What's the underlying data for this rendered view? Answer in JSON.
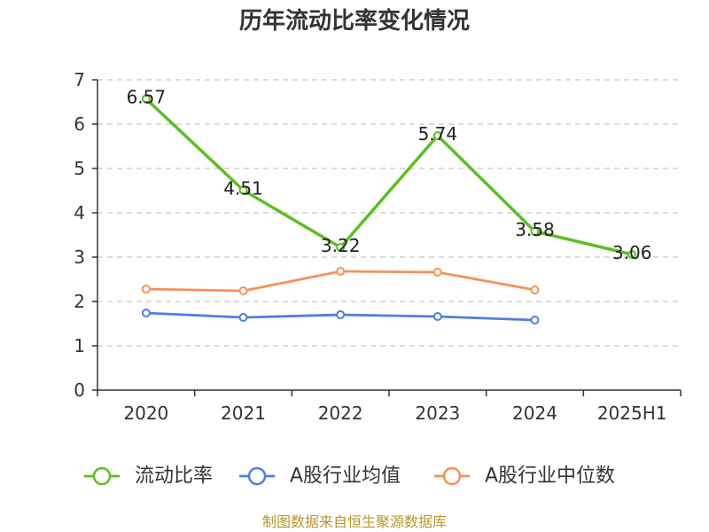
{
  "footer": "制图数据来自恒生聚源数据库",
  "colors": {
    "axis": "#333333",
    "grid": "#c8c8c8",
    "footer": "#b8962e",
    "point_fill": "#ffffff"
  },
  "chart_data": {
    "type": "line",
    "title": "历年流动比率变化情况",
    "xlabel": "",
    "ylabel": "",
    "categories": [
      "2020",
      "2021",
      "2022",
      "2023",
      "2024",
      "2025H1"
    ],
    "ylim": [
      0,
      7
    ],
    "yticks": [
      "0",
      "1",
      "2",
      "3",
      "4",
      "5",
      "6",
      "7"
    ],
    "grid": true,
    "legend": "bottom",
    "series": [
      {
        "name": "流动比率",
        "color": "#5bbf24",
        "show_labels": true,
        "values": [
          6.57,
          4.51,
          3.22,
          5.74,
          3.58,
          3.06
        ]
      },
      {
        "name": "A股行业均值",
        "color": "#4f7ee0",
        "show_labels": false,
        "values": [
          1.74,
          1.64,
          1.7,
          1.66,
          1.58,
          null
        ]
      },
      {
        "name": "A股行业中位数",
        "color": "#f5915a",
        "show_labels": false,
        "values": [
          2.28,
          2.24,
          2.68,
          2.66,
          2.26,
          null
        ]
      }
    ]
  }
}
